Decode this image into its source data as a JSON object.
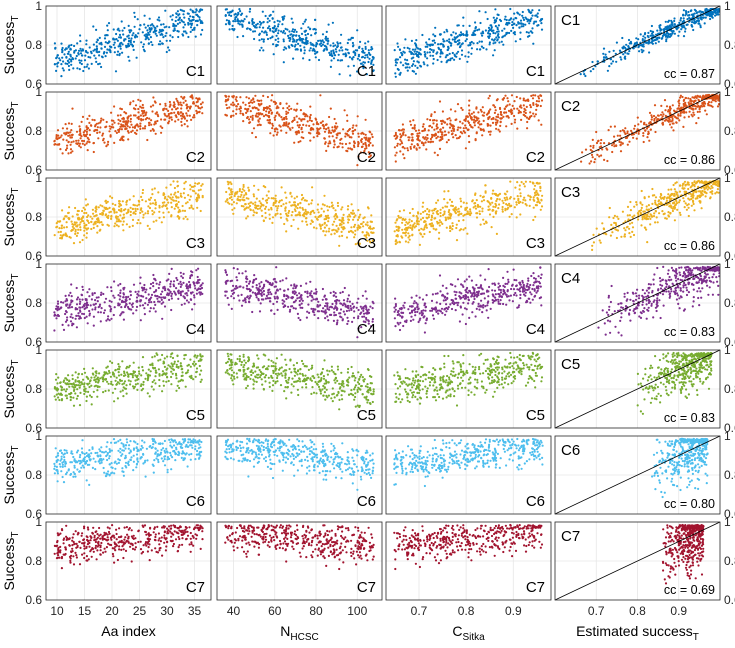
{
  "chart_data": {
    "type": "scatter",
    "rows": [
      "C1",
      "C2",
      "C3",
      "C4",
      "C5",
      "C6",
      "C7"
    ],
    "row_colors": [
      "#0072bd",
      "#d95319",
      "#edb120",
      "#7e2f8e",
      "#77ac30",
      "#4dbeee",
      "#a2142f"
    ],
    "ylabel_main": "Success",
    "ylabel_sub": "T",
    "ylim": [
      0.6,
      1.0
    ],
    "yticks": [
      "0.6",
      "0.8",
      "1"
    ],
    "grid": true,
    "columns": [
      {
        "xlabel_main": "Aa index",
        "xlabel_sub": "",
        "xlim": [
          8,
          38
        ],
        "xticks": [
          10,
          15,
          20,
          25,
          30,
          35
        ],
        "xtick_labels": [
          "10",
          "15",
          "20",
          "25",
          "30",
          "35"
        ],
        "relation": "positive",
        "diagonal": false
      },
      {
        "xlabel_main": "N",
        "xlabel_sub": "HCSC",
        "xlim": [
          32,
          112
        ],
        "xticks": [
          40,
          60,
          80,
          100
        ],
        "xtick_labels": [
          "40",
          "60",
          "80",
          "100"
        ],
        "relation": "negative",
        "diagonal": false
      },
      {
        "xlabel_main": "C",
        "xlabel_sub": "Sitka",
        "xlim": [
          0.63,
          0.98
        ],
        "xticks": [
          0.7,
          0.8,
          0.9
        ],
        "xtick_labels": [
          "0.7",
          "0.8",
          "0.9"
        ],
        "relation": "positive",
        "diagonal": false
      },
      {
        "xlabel_main": "Estimated success",
        "xlabel_sub": "T",
        "xlim": [
          0.6,
          1.0
        ],
        "xticks": [
          0.7,
          0.8,
          0.9
        ],
        "xtick_labels": [
          "0.7",
          "0.8",
          "0.9"
        ],
        "relation": "identity",
        "diagonal": true
      }
    ],
    "cc_values": [
      "cc = 0.87",
      "cc = 0.86",
      "cc = 0.86",
      "cc = 0.83",
      "cc = 0.83",
      "cc = 0.80",
      "cc = 0.69"
    ],
    "row_y_centers": [
      0.83,
      0.84,
      0.83,
      0.82,
      0.86,
      0.9,
      0.91
    ],
    "col4_x_ranges": [
      [
        0.6,
        1.0
      ],
      [
        0.6,
        1.0
      ],
      [
        0.62,
        1.0
      ],
      [
        0.65,
        1.0
      ],
      [
        0.76,
        0.98
      ],
      [
        0.81,
        0.97
      ],
      [
        0.84,
        0.96
      ]
    ]
  }
}
